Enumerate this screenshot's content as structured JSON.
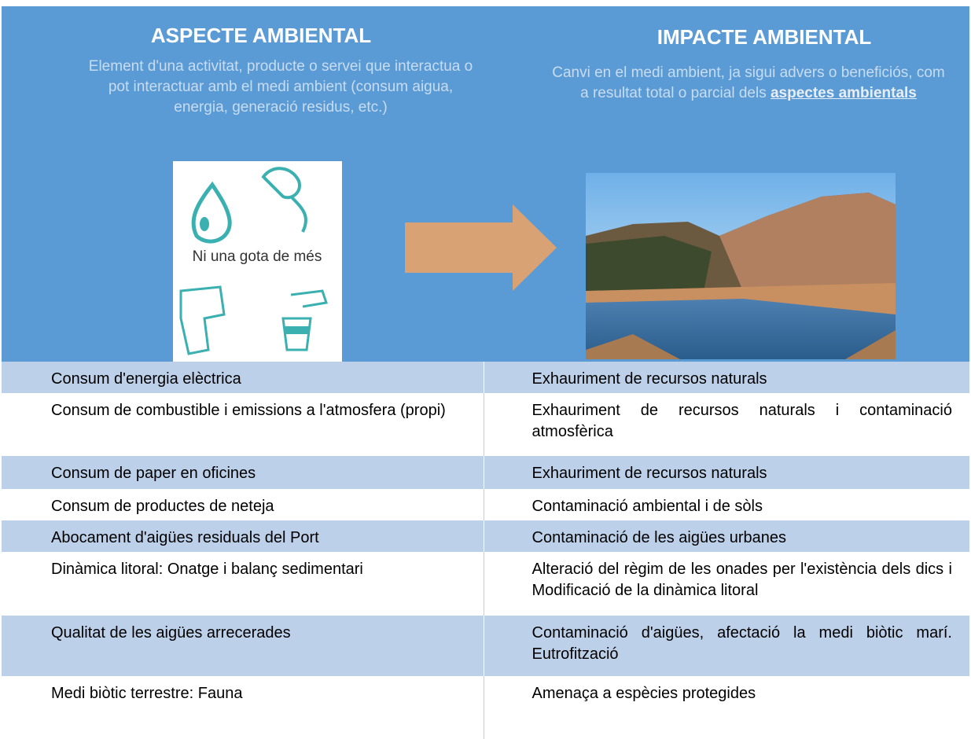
{
  "header": {
    "left": {
      "title": "ASPECTE AMBIENTAL",
      "description": "Element d'una activitat, producte o servei que interactua o pot interactuar amb el medi ambient (consum aigua, energia, generació residus, etc.)",
      "image_text": "Ni una gota de més"
    },
    "right": {
      "title": "IMPACTE AMBIENTAL",
      "description": "Canvi en el medi ambient, ja sigui advers o beneficiós, com a resultat total o parcial dels",
      "link": "aspectes ambientals"
    }
  },
  "table": {
    "rows": [
      [
        "Consum d'energia elèctrica",
        "Exhauriment de recursos naturals"
      ],
      [
        "Consum de combustible i emissions a l'atmosfera (propi)",
        "Exhauriment de recursos naturals i contaminació atmosfèrica"
      ],
      [
        "Consum de paper en oficines",
        "Exhauriment de recursos naturals"
      ],
      [
        "Consum de productes de neteja",
        "Contaminació ambiental i de sòls"
      ],
      [
        "Abocament d'aigües residuals del Port",
        "Contaminació de les aigües urbanes"
      ],
      [
        "Dinàmica litoral: Onatge i balanç sedimentari",
        "Alteració del règim de les onades per l'existència dels dics i Modificació de la dinàmica litoral"
      ],
      [
        "Qualitat de les aigües arrecerades",
        "Contaminació d'aigües, afectació la medi biòtic marí. Eutrofització"
      ],
      [
        "Medi biòtic terrestre: Fauna",
        "Amenaça a espècies protegides"
      ]
    ]
  }
}
